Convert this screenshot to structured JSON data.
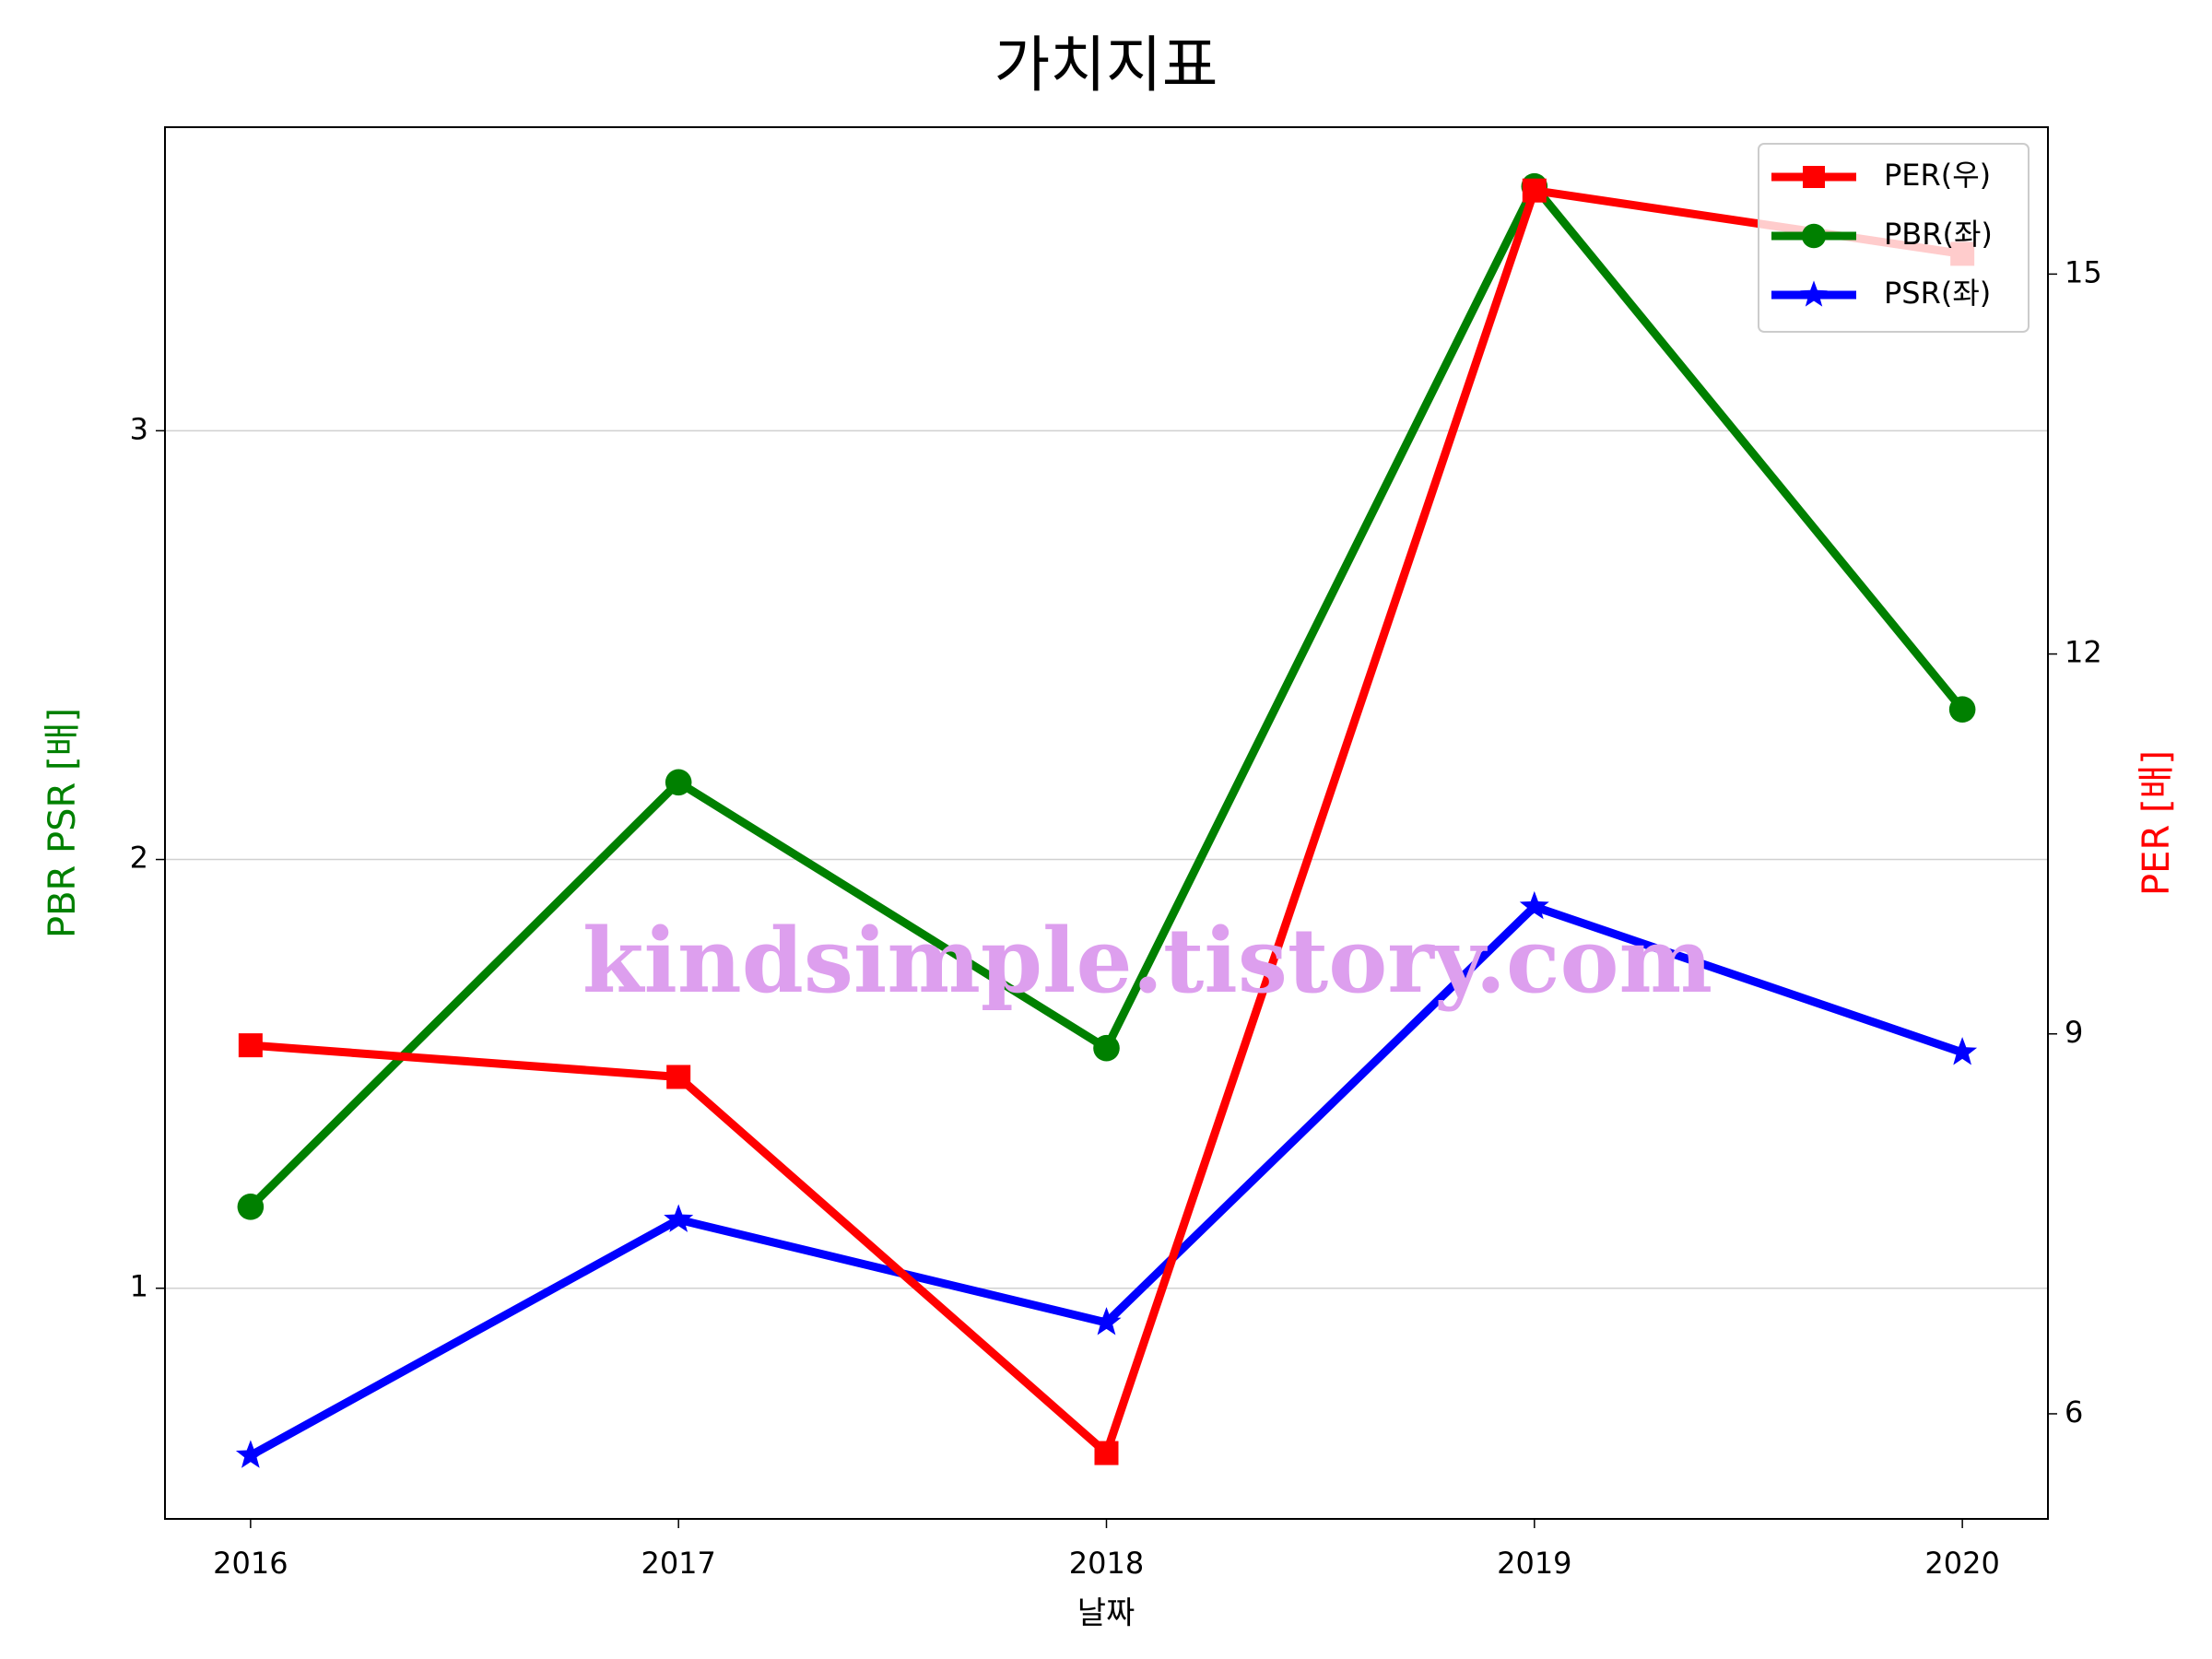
{
  "chart_data": {
    "type": "line",
    "title": "가치지표",
    "xlabel": "날짜",
    "ylabel": "PBR PSR [배]",
    "ylabel_color": "#008000",
    "y2label": "PER [배]",
    "y2label_color": "#ff0000",
    "x": [
      2016,
      2017,
      2018,
      2019,
      2020
    ],
    "xlim": [
      2015.8,
      2020.2
    ],
    "xticks": [
      2016,
      2017,
      2018,
      2019,
      2020
    ],
    "ylim": [
      0.462,
      3.708
    ],
    "yticks": [
      1,
      2,
      3
    ],
    "y2lim": [
      5.17,
      16.16
    ],
    "y2ticks": [
      6,
      9,
      12,
      15
    ],
    "grid": true,
    "legend": "upper right",
    "annotation": "kindsimple.tistory.com",
    "series": [
      {
        "name": "PER(우)",
        "color": "#ff0000",
        "marker": "square",
        "axis": "y2",
        "values": [
          8.91,
          8.66,
          5.69,
          15.66,
          15.16
        ]
      },
      {
        "name": "PBR(좌)",
        "color": "#008000",
        "marker": "circle",
        "values": [
          1.19,
          2.18,
          1.56,
          3.57,
          2.35
        ]
      },
      {
        "name": "PSR(좌)",
        "color": "#0000ff",
        "marker": "star",
        "values": [
          0.61,
          1.16,
          0.92,
          1.89,
          1.55
        ]
      }
    ]
  }
}
